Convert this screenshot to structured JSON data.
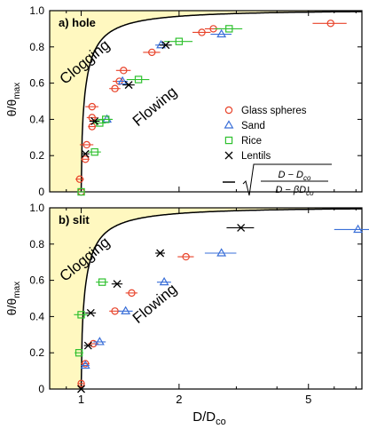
{
  "chart_data": [
    {
      "type": "scatter",
      "panel_label": "a) hole",
      "region_labels": {
        "upper": "Clogging",
        "lower": "Flowing"
      },
      "xlabel": "D/D",
      "xlabel_sub": "co",
      "ylabel": "θ/θ",
      "ylabel_sub": "max",
      "x_scale": "log",
      "xlim": [
        0.8,
        7.3
      ],
      "ylim": [
        0,
        1.0
      ],
      "xticks": [
        1,
        2,
        5
      ],
      "yticks": [
        0,
        0.2,
        0.4,
        0.6,
        0.8,
        1.0
      ],
      "xtick_labels": [],
      "ytick_labels": [
        "0",
        "0.2",
        "0.4",
        "0.6",
        "0.8",
        "1.0"
      ],
      "fit_curve": {
        "D0": 1.0,
        "beta": 0.935,
        "label_lines": [
          "D − D",
          "D − βD"
        ],
        "label_subs": [
          "co",
          "co"
        ]
      },
      "legend": {
        "placement": "right",
        "entries": [
          {
            "name": "Glass spheres",
            "marker": "circle",
            "color": "#e8432a"
          },
          {
            "name": "Sand",
            "marker": "triangle",
            "color": "#3a6fd8"
          },
          {
            "name": "Rice",
            "marker": "square",
            "color": "#2fc12f"
          },
          {
            "name": "Lentils",
            "marker": "x",
            "color": "#000000"
          }
        ]
      },
      "series": [
        {
          "name": "Glass spheres",
          "points": [
            {
              "x": 1.0,
              "y": 0.0,
              "xerr": 0.02
            },
            {
              "x": 0.99,
              "y": 0.07,
              "xerr": 0.03
            },
            {
              "x": 1.03,
              "y": 0.18,
              "xerr": 0.03
            },
            {
              "x": 1.04,
              "y": 0.26,
              "xerr": 0.05
            },
            {
              "x": 1.08,
              "y": 0.36,
              "xerr": 0.03
            },
            {
              "x": 1.08,
              "y": 0.41,
              "xerr": 0.04
            },
            {
              "x": 1.08,
              "y": 0.47,
              "xerr": 0.05
            },
            {
              "x": 1.27,
              "y": 0.57,
              "xerr": 0.05
            },
            {
              "x": 1.31,
              "y": 0.61,
              "xerr": 0.06
            },
            {
              "x": 1.35,
              "y": 0.67,
              "xerr": 0.07
            },
            {
              "x": 1.65,
              "y": 0.77,
              "xerr": 0.1
            },
            {
              "x": 2.35,
              "y": 0.88,
              "xerr": 0.15
            },
            {
              "x": 2.55,
              "y": 0.9,
              "xerr": 0.15
            },
            {
              "x": 5.85,
              "y": 0.93,
              "xerr": 0.7
            }
          ]
        },
        {
          "name": "Sand",
          "points": [
            {
              "x": 1.2,
              "y": 0.4,
              "xerr": 0.04
            },
            {
              "x": 1.34,
              "y": 0.61,
              "xerr": 0.05
            },
            {
              "x": 1.76,
              "y": 0.81,
              "xerr": 0.07
            },
            {
              "x": 2.7,
              "y": 0.87,
              "xerr": 0.2
            }
          ]
        },
        {
          "name": "Rice",
          "points": [
            {
              "x": 1.0,
              "y": 0.0,
              "xerr": 0.02
            },
            {
              "x": 1.1,
              "y": 0.22,
              "xerr": 0.05
            },
            {
              "x": 1.14,
              "y": 0.38,
              "xerr": 0.05
            },
            {
              "x": 1.19,
              "y": 0.4,
              "xerr": 0.06
            },
            {
              "x": 1.5,
              "y": 0.62,
              "xerr": 0.12
            },
            {
              "x": 2.0,
              "y": 0.83,
              "xerr": 0.2
            },
            {
              "x": 2.85,
              "y": 0.9,
              "xerr": 0.28
            }
          ]
        },
        {
          "name": "Lentils",
          "points": [
            {
              "x": 1.03,
              "y": 0.21,
              "xerr": 0.03
            },
            {
              "x": 1.1,
              "y": 0.39,
              "xerr": 0.04
            },
            {
              "x": 1.4,
              "y": 0.59,
              "xerr": 0.06
            },
            {
              "x": 1.82,
              "y": 0.81,
              "xerr": 0.08
            }
          ]
        }
      ]
    },
    {
      "type": "scatter",
      "panel_label": "b) slit",
      "region_labels": {
        "upper": "Clogging",
        "lower": "Flowing"
      },
      "xlabel": "D/D",
      "xlabel_sub": "co",
      "ylabel": "θ/θ",
      "ylabel_sub": "max",
      "x_scale": "log",
      "xlim": [
        0.8,
        7.3
      ],
      "ylim": [
        0,
        1.0
      ],
      "xticks": [
        1,
        2,
        5
      ],
      "yticks": [
        0,
        0.2,
        0.4,
        0.6,
        0.8,
        1.0
      ],
      "xtick_labels": [
        "1",
        "2",
        "5"
      ],
      "ytick_labels": [
        "0",
        "0.2",
        "0.4",
        "0.6",
        "0.8",
        "1.0"
      ],
      "fit_curve": {
        "D0": 1.0,
        "beta": 0.935
      },
      "series": [
        {
          "name": "Glass spheres",
          "points": [
            {
              "x": 1.0,
              "y": 0.03,
              "xerr": 0.02
            },
            {
              "x": 1.03,
              "y": 0.14,
              "xerr": 0.03
            },
            {
              "x": 1.09,
              "y": 0.25,
              "xerr": 0.04
            },
            {
              "x": 1.27,
              "y": 0.43,
              "xerr": 0.05
            },
            {
              "x": 1.43,
              "y": 0.53,
              "xerr": 0.06
            },
            {
              "x": 2.1,
              "y": 0.73,
              "xerr": 0.12
            }
          ]
        },
        {
          "name": "Sand",
          "points": [
            {
              "x": 1.03,
              "y": 0.13,
              "xerr": 0.03
            },
            {
              "x": 1.14,
              "y": 0.26,
              "xerr": 0.05
            },
            {
              "x": 1.37,
              "y": 0.43,
              "xerr": 0.07
            },
            {
              "x": 1.8,
              "y": 0.59,
              "xerr": 0.09
            },
            {
              "x": 2.7,
              "y": 0.75,
              "xerr": 0.3
            },
            {
              "x": 7.1,
              "y": 0.88,
              "xerr": 1.1
            }
          ]
        },
        {
          "name": "Rice",
          "points": [
            {
              "x": 0.985,
              "y": 0.2,
              "xerr": 0.03
            },
            {
              "x": 1.0,
              "y": 0.41,
              "xerr": 0.05
            },
            {
              "x": 1.16,
              "y": 0.59,
              "xerr": 0.05
            }
          ]
        },
        {
          "name": "Lentils",
          "points": [
            {
              "x": 1.0,
              "y": 0.0,
              "xerr": 0.02
            },
            {
              "x": 1.05,
              "y": 0.24,
              "xerr": 0.03
            },
            {
              "x": 1.07,
              "y": 0.42,
              "xerr": 0.04
            },
            {
              "x": 1.29,
              "y": 0.58,
              "xerr": 0.05
            },
            {
              "x": 1.75,
              "y": 0.75,
              "xerr": 0.06
            },
            {
              "x": 3.1,
              "y": 0.89,
              "xerr": 0.3
            }
          ]
        }
      ]
    }
  ],
  "colors": {
    "clogging_fill": "#fff8c0",
    "curve": "#000000",
    "axis": "#000000",
    "glass_spheres": "#e8432a",
    "sand": "#3a6fd8",
    "rice": "#2fc12f",
    "lentils": "#000000"
  }
}
